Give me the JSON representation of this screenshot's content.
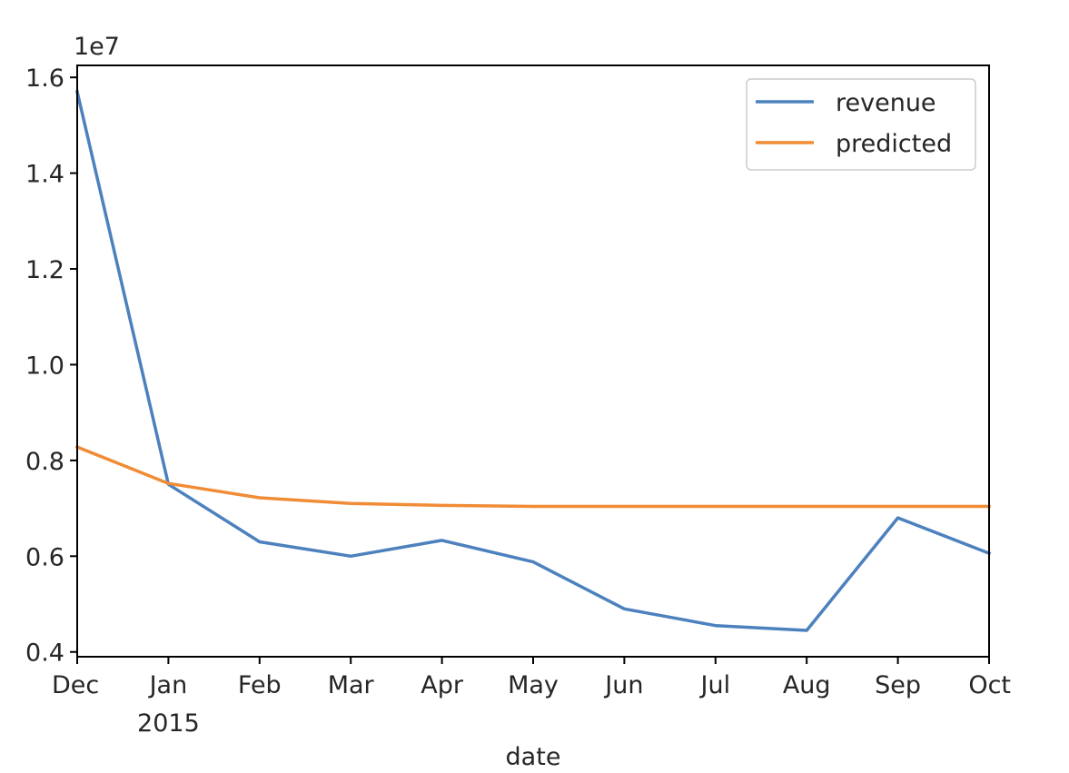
{
  "chart_data": {
    "type": "line",
    "x": [
      "Dec",
      "Jan",
      "Feb",
      "Mar",
      "Apr",
      "May",
      "Jun",
      "Jul",
      "Aug",
      "Sep",
      "Oct"
    ],
    "x_year_labels": {
      "Jan": "2015"
    },
    "series": [
      {
        "name": "revenue",
        "color": "#4c81be",
        "values": [
          15700000,
          7500000,
          6300000,
          6000000,
          6330000,
          5880000,
          4900000,
          4550000,
          4450000,
          6800000,
          6060000
        ]
      },
      {
        "name": "predicted",
        "color": "#f08c36",
        "values": [
          8280000,
          7520000,
          7220000,
          7100000,
          7060000,
          7040000,
          7040000,
          7040000,
          7040000,
          7040000,
          7040000
        ]
      }
    ],
    "xlabel": "date",
    "ylabel": "",
    "ylim": [
      3900000,
      16250000
    ],
    "y_ticks": [
      4000000,
      6000000,
      8000000,
      10000000,
      12000000,
      14000000,
      16000000
    ],
    "y_tick_labels": [
      "0.4",
      "0.6",
      "0.8",
      "1.0",
      "1.2",
      "1.4",
      "1.6"
    ],
    "y_offset_label": "1e7",
    "grid": false,
    "legend_position": "upper right"
  }
}
